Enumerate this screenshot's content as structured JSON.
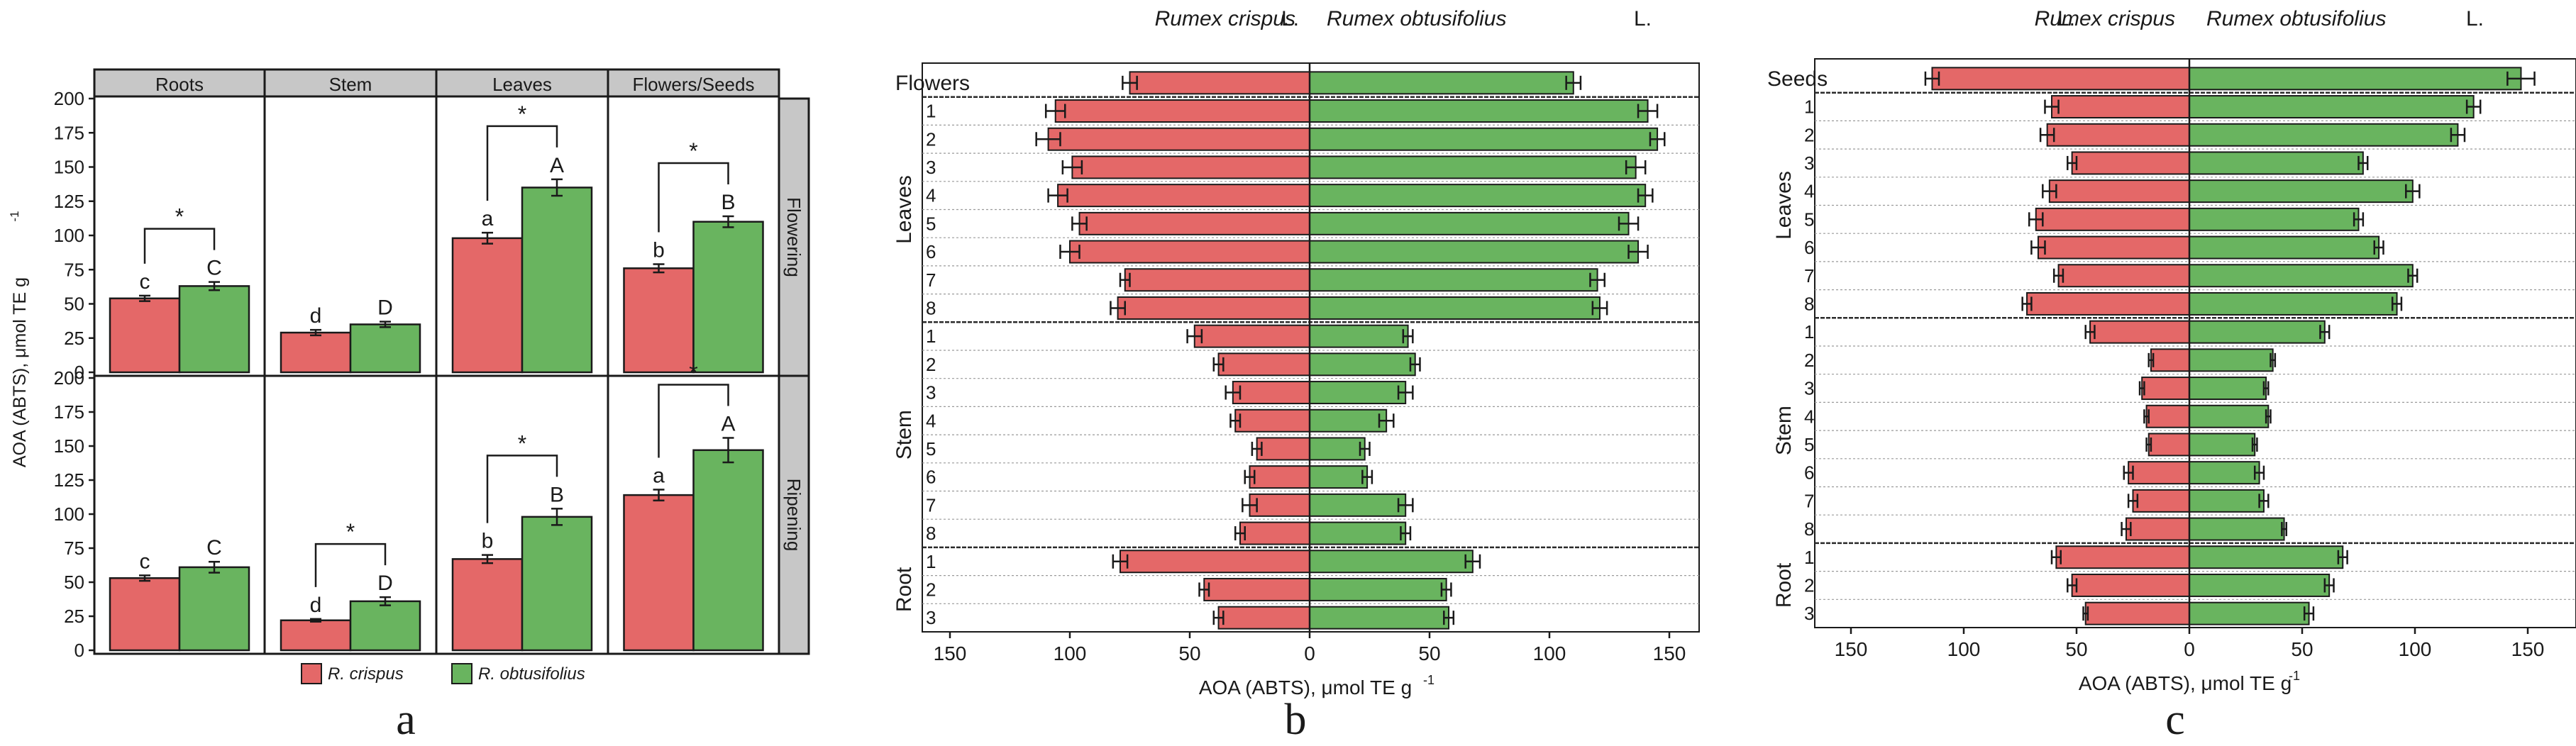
{
  "colors": {
    "crispus": "#e46868",
    "obtusifolius": "#69b45f",
    "strip": "#c7c7c7",
    "text": "#1a1a1a"
  },
  "chart_data": [
    {
      "type": "bar",
      "panel_label": "a",
      "ylabel": "AOA (ABTS), μmol TE g",
      "ylabel_sup": "-1",
      "ylim": [
        0,
        200
      ],
      "yticks": [
        "0",
        "25",
        "50",
        "75",
        "100",
        "125",
        "150",
        "175",
        "200"
      ],
      "columns": [
        "Roots",
        "Stem",
        "Leaves",
        "Flowers/Seeds"
      ],
      "rows": [
        "Flowering",
        "Ripening"
      ],
      "legend": [
        "R. crispus",
        "R. obtusifolius"
      ],
      "cells": [
        {
          "row": 0,
          "col": 0,
          "values": [
            54,
            63
          ],
          "errors": [
            2,
            3
          ],
          "labels": [
            "c",
            "C"
          ],
          "star": true
        },
        {
          "row": 0,
          "col": 1,
          "values": [
            29,
            35
          ],
          "errors": [
            2,
            2
          ],
          "labels": [
            "d",
            "D"
          ],
          "star": false
        },
        {
          "row": 0,
          "col": 2,
          "values": [
            98,
            135
          ],
          "errors": [
            4,
            6
          ],
          "labels": [
            "a",
            "A"
          ],
          "star": true
        },
        {
          "row": 0,
          "col": 3,
          "values": [
            76,
            110
          ],
          "errors": [
            3,
            4
          ],
          "labels": [
            "b",
            "B"
          ],
          "star": true
        },
        {
          "row": 1,
          "col": 0,
          "values": [
            53,
            61
          ],
          "errors": [
            2,
            4
          ],
          "labels": [
            "c",
            "C"
          ],
          "star": false
        },
        {
          "row": 1,
          "col": 1,
          "values": [
            22,
            36
          ],
          "errors": [
            1,
            3
          ],
          "labels": [
            "d",
            "D"
          ],
          "star": true
        },
        {
          "row": 1,
          "col": 2,
          "values": [
            67,
            98
          ],
          "errors": [
            3,
            6
          ],
          "labels": [
            "b",
            "B"
          ],
          "star": true
        },
        {
          "row": 1,
          "col": 3,
          "values": [
            114,
            147
          ],
          "errors": [
            4,
            9
          ],
          "labels": [
            "a",
            "A"
          ],
          "star": true
        }
      ]
    },
    {
      "type": "bar",
      "orientation": "horizontal-diverging",
      "panel_label": "b",
      "left_title": "Rumex crispus",
      "right_title": "Rumex obtusifolius",
      "title_suffix": "L.",
      "xlabel": "AOA (ABTS), μmol TE g",
      "xlabel_sup": "-1",
      "xlim": [
        -160,
        160
      ],
      "xticks": [
        "150",
        "100",
        "50",
        "0",
        "50",
        "100",
        "150"
      ],
      "groups": [
        {
          "name": "Flowers",
          "rotated": false,
          "ticks": [
            ""
          ],
          "crispus": [
            75
          ],
          "crispus_err": [
            3
          ],
          "obtusifolius": [
            110
          ],
          "obtusifolius_err": [
            3
          ]
        },
        {
          "name": "Leaves",
          "rotated": true,
          "ticks": [
            "1",
            "2",
            "3",
            "4",
            "5",
            "6",
            "7",
            "8"
          ],
          "crispus": [
            106,
            109,
            99,
            105,
            96,
            100,
            77,
            80
          ],
          "crispus_err": [
            4,
            5,
            4,
            4,
            3,
            4,
            2,
            3
          ],
          "obtusifolius": [
            141,
            145,
            136,
            140,
            133,
            137,
            120,
            121
          ],
          "obtusifolius_err": [
            4,
            3,
            4,
            3,
            4,
            4,
            3,
            3
          ]
        },
        {
          "name": "Stem",
          "rotated": true,
          "ticks": [
            "1",
            "2",
            "3",
            "4",
            "5",
            "6",
            "7",
            "8"
          ],
          "crispus": [
            48,
            38,
            32,
            31,
            22,
            25,
            25,
            29
          ],
          "crispus_err": [
            3,
            2,
            3,
            2,
            2,
            2,
            3,
            2
          ],
          "obtusifolius": [
            41,
            44,
            40,
            32,
            23,
            24,
            40,
            40
          ],
          "obtusifolius_err": [
            2,
            2,
            3,
            3,
            2,
            2,
            3,
            2
          ]
        },
        {
          "name": "Root",
          "rotated": true,
          "ticks": [
            "1",
            "2",
            "3"
          ],
          "crispus": [
            79,
            44,
            38
          ],
          "crispus_err": [
            3,
            2,
            2
          ],
          "obtusifolius": [
            68,
            57,
            58
          ],
          "obtusifolius_err": [
            3,
            2,
            2
          ]
        }
      ]
    },
    {
      "type": "bar",
      "orientation": "horizontal-diverging",
      "panel_label": "c",
      "left_title": "Rumex crispus",
      "right_title": "Rumex obtusifolius",
      "title_suffix": "L.",
      "xlabel": "AOA (ABTS), μmol TE g",
      "xlabel_sup": "-1",
      "xlim": [
        -170,
        170
      ],
      "xticks": [
        "150",
        "100",
        "50",
        "0",
        "50",
        "100",
        "150"
      ],
      "groups": [
        {
          "name": "Seeds",
          "rotated": false,
          "ticks": [
            ""
          ],
          "crispus": [
            114
          ],
          "crispus_err": [
            3
          ],
          "obtusifolius": [
            147
          ],
          "obtusifolius_err": [
            6
          ]
        },
        {
          "name": "Leaves",
          "rotated": true,
          "ticks": [
            "1",
            "2",
            "3",
            "4",
            "5",
            "6",
            "7",
            "8"
          ],
          "crispus": [
            61,
            63,
            52,
            62,
            68,
            67,
            58,
            72
          ],
          "crispus_err": [
            3,
            3,
            2,
            3,
            3,
            3,
            2,
            2
          ],
          "obtusifolius": [
            126,
            119,
            77,
            99,
            75,
            84,
            99,
            92
          ],
          "obtusifolius_err": [
            3,
            3,
            2,
            3,
            2,
            2,
            2,
            2
          ]
        },
        {
          "name": "Stem",
          "rotated": true,
          "ticks": [
            "1",
            "2",
            "3",
            "4",
            "5",
            "6",
            "7",
            "8"
          ],
          "crispus": [
            44,
            17,
            21,
            19,
            18,
            27,
            25,
            28
          ],
          "crispus_err": [
            2,
            1,
            1,
            1,
            1,
            2,
            2,
            2
          ],
          "obtusifolius": [
            60,
            37,
            34,
            35,
            29,
            31,
            33,
            42
          ],
          "obtusifolius_err": [
            2,
            1,
            1,
            1,
            1,
            2,
            2,
            1
          ]
        },
        {
          "name": "Root",
          "rotated": true,
          "ticks": [
            "1",
            "2",
            "3"
          ],
          "crispus": [
            59,
            52,
            46
          ],
          "crispus_err": [
            2,
            2,
            1
          ],
          "obtusifolius": [
            68,
            62,
            53
          ],
          "obtusifolius_err": [
            2,
            2,
            2
          ]
        }
      ]
    }
  ]
}
